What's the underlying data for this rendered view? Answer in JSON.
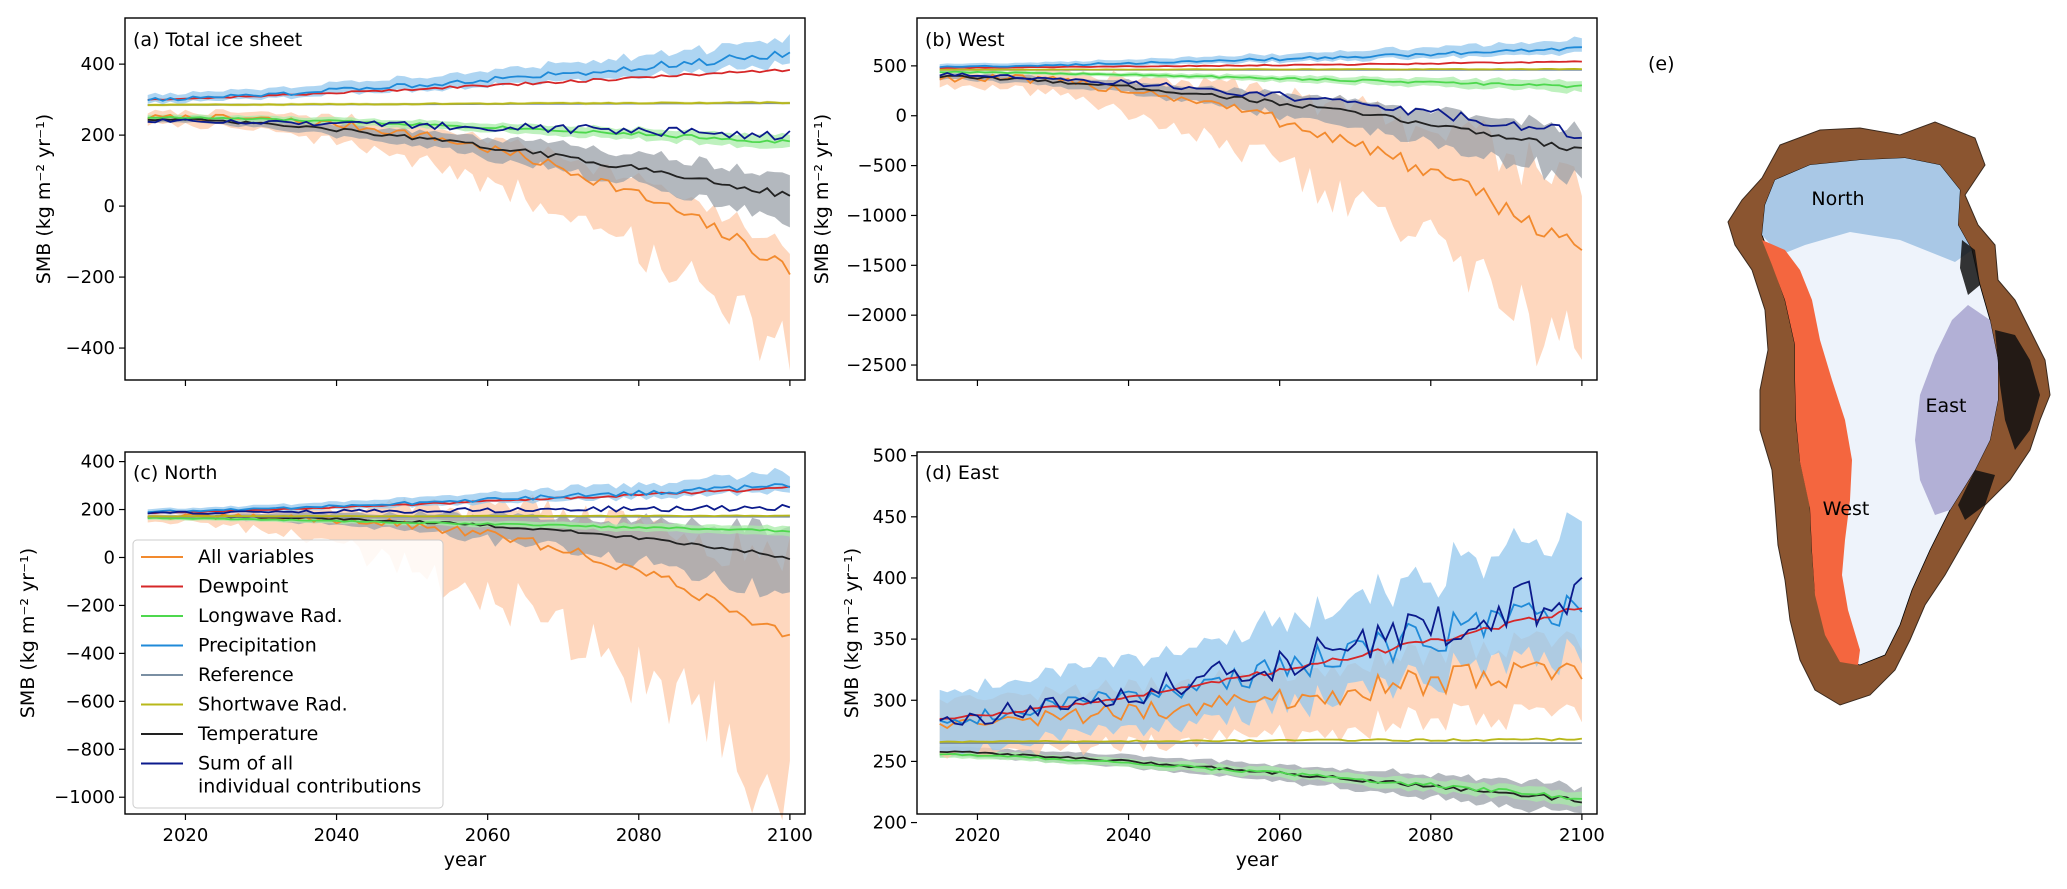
{
  "figure": {
    "map_panel_label": "(e)",
    "region_labels": [
      "North",
      "West",
      "East"
    ],
    "region_colors": {
      "North": "#a9c8e6",
      "West": "#f4663f",
      "East": "#b2b0d6",
      "interior": "#eef3fb",
      "coast": "#8b5530"
    }
  },
  "legend": {
    "entries": [
      {
        "label": "All variables",
        "color": "#f28a2e"
      },
      {
        "label": "Dewpoint",
        "color": "#d62728"
      },
      {
        "label": "Longwave Rad.",
        "color": "#4ed84e"
      },
      {
        "label": "Precipitation",
        "color": "#1f8ad8"
      },
      {
        "label": "Reference",
        "color": "#7a8fa3"
      },
      {
        "label": "Shortwave Rad.",
        "color": "#b8b81a"
      },
      {
        "label": "Temperature",
        "color": "#222222"
      },
      {
        "label": "Sum of all",
        "label2": "individual contributions",
        "color": "#0b1a8c"
      }
    ]
  },
  "chart_data": [
    {
      "type": "line",
      "panel_label": "(a) Total ice sheet",
      "xlabel": "",
      "ylabel": "SMB (kg m⁻² yr⁻¹)",
      "xlim": [
        2012,
        2102
      ],
      "ylim": [
        -490,
        530
      ],
      "yticks": [
        400,
        200,
        0,
        -200,
        -400
      ],
      "ytick_labels": [
        "400",
        "200",
        "0",
        "−200",
        "−400"
      ],
      "xticks": [
        2020,
        2040,
        2060,
        2080,
        2100
      ],
      "xtick_labels": [],
      "series": [
        {
          "name": "All variables",
          "color": "#f28a2e",
          "band": "#fdc9a8",
          "start": 250,
          "end": -180,
          "curve": 2.5,
          "noise": 22,
          "band_low": [
            20,
            230
          ],
          "band_high": [
            15,
            55
          ]
        },
        {
          "name": "Temperature",
          "color": "#222222",
          "band": "#9aa0a8",
          "start": 245,
          "end": 30,
          "curve": 1.6,
          "noise": 10,
          "band_low": [
            8,
            70
          ],
          "band_high": [
            8,
            60
          ]
        },
        {
          "name": "Longwave Rad.",
          "color": "#4ed84e",
          "band": "#a8eca8",
          "start": 250,
          "end": 180,
          "curve": 1.5,
          "noise": 6,
          "band_low": [
            8,
            20
          ],
          "band_high": [
            8,
            20
          ]
        },
        {
          "name": "Reference",
          "color": "#7a8fa3",
          "band": null,
          "start": 285,
          "end": 290,
          "curve": 1,
          "noise": 0
        },
        {
          "name": "Shortwave Rad.",
          "color": "#b8b81a",
          "band": "#e4e49a",
          "start": 285,
          "end": 292,
          "curve": 1,
          "noise": 2,
          "band_low": [
            4,
            4
          ],
          "band_high": [
            4,
            4
          ]
        },
        {
          "name": "Dewpoint",
          "color": "#d62728",
          "band": null,
          "start": 300,
          "end": 385,
          "curve": 1.2,
          "noise": 5
        },
        {
          "name": "Precipitation",
          "color": "#1f8ad8",
          "band": "#93c7ee",
          "start": 300,
          "end": 430,
          "curve": 1.3,
          "noise": 12,
          "band_low": [
            10,
            30
          ],
          "band_high": [
            15,
            45
          ]
        },
        {
          "name": "Sum of all individual contributions",
          "color": "#0b1a8c",
          "band": null,
          "start": 240,
          "end": 200,
          "curve": 1.4,
          "noise": 16
        }
      ]
    },
    {
      "type": "line",
      "panel_label": "(b) West",
      "xlabel": "",
      "ylabel": "SMB (kg m⁻² yr⁻¹)",
      "xlim": [
        2012,
        2102
      ],
      "ylim": [
        -2650,
        980
      ],
      "yticks": [
        500,
        0,
        -500,
        -1000,
        -1500,
        -2000,
        -2500
      ],
      "ytick_labels": [
        "500",
        "0",
        "−500",
        "−1000",
        "−1500",
        "−2000",
        "−2500"
      ],
      "xticks": [
        2020,
        2040,
        2060,
        2080,
        2100
      ],
      "xtick_labels": [],
      "series": [
        {
          "name": "All variables",
          "color": "#f28a2e",
          "band": "#fdc9a8",
          "start": 380,
          "end": -1350,
          "curve": 2.2,
          "noise": 110,
          "band_low": [
            80,
            1100
          ],
          "band_high": [
            50,
            650
          ]
        },
        {
          "name": "Temperature",
          "color": "#222222",
          "band": "#9aa0a8",
          "start": 390,
          "end": -340,
          "curve": 1.6,
          "noise": 35,
          "band_low": [
            30,
            280
          ],
          "band_high": [
            30,
            200
          ]
        },
        {
          "name": "Longwave Rad.",
          "color": "#4ed84e",
          "band": "#a8eca8",
          "start": 440,
          "end": 290,
          "curve": 1.3,
          "noise": 15,
          "band_low": [
            15,
            60
          ],
          "band_high": [
            15,
            60
          ]
        },
        {
          "name": "Reference",
          "color": "#7a8fa3",
          "band": null,
          "start": 460,
          "end": 460,
          "curve": 1,
          "noise": 0
        },
        {
          "name": "Shortwave Rad.",
          "color": "#b8b81a",
          "band": null,
          "start": 462,
          "end": 468,
          "curve": 1,
          "noise": 3
        },
        {
          "name": "Dewpoint",
          "color": "#d62728",
          "band": null,
          "start": 480,
          "end": 540,
          "curve": 1.2,
          "noise": 8
        },
        {
          "name": "Precipitation",
          "color": "#1f8ad8",
          "band": "#93c7ee",
          "start": 490,
          "end": 670,
          "curve": 1.3,
          "noise": 20,
          "band_low": [
            20,
            50
          ],
          "band_high": [
            30,
            90
          ]
        },
        {
          "name": "Sum of all individual contributions",
          "color": "#0b1a8c",
          "band": null,
          "start": 410,
          "end": -180,
          "curve": 1.6,
          "noise": 60
        }
      ]
    },
    {
      "type": "line",
      "panel_label": "(c) North",
      "xlabel": "",
      "ylabel": "SMB (kg m⁻² yr⁻¹)",
      "xlim": [
        2012,
        2102
      ],
      "ylim": [
        -1070,
        440
      ],
      "yticks": [
        400,
        200,
        0,
        -200,
        -400,
        -600,
        -800,
        -1000
      ],
      "ytick_labels": [
        "400",
        "200",
        "0",
        "−200",
        "−400",
        "−600",
        "−800",
        "−1000"
      ],
      "xticks": [
        2020,
        2040,
        2060,
        2080,
        2100
      ],
      "xtick_labels": [
        "2020",
        "2040",
        "2060",
        "2080",
        "2100"
      ],
      "series": [
        {
          "name": "All variables",
          "color": "#f28a2e",
          "band": "#fdc9a8",
          "start": 170,
          "end": -340,
          "curve": 3.0,
          "noise": 30,
          "band_low": [
            20,
            650
          ],
          "band_high": [
            10,
            300
          ]
        },
        {
          "name": "Temperature",
          "color": "#222222",
          "band": "#9aa0a8",
          "start": 170,
          "end": 0,
          "curve": 2.4,
          "noise": 8,
          "band_low": [
            8,
            150
          ],
          "band_high": [
            8,
            110
          ]
        },
        {
          "name": "Longwave Rad.",
          "color": "#4ed84e",
          "band": "#a8eca8",
          "start": 165,
          "end": 110,
          "curve": 1.2,
          "noise": 5,
          "band_low": [
            8,
            20
          ],
          "band_high": [
            8,
            20
          ]
        },
        {
          "name": "Reference",
          "color": "#7a8fa3",
          "band": null,
          "start": 170,
          "end": 170,
          "curve": 1,
          "noise": 0
        },
        {
          "name": "Shortwave Rad.",
          "color": "#b8b81a",
          "band": null,
          "start": 172,
          "end": 174,
          "curve": 1,
          "noise": 2
        },
        {
          "name": "Dewpoint",
          "color": "#d62728",
          "band": null,
          "start": 185,
          "end": 290,
          "curve": 1.2,
          "noise": 6
        },
        {
          "name": "Precipitation",
          "color": "#1f8ad8",
          "band": "#93c7ee",
          "start": 190,
          "end": 300,
          "curve": 1.2,
          "noise": 12,
          "band_low": [
            10,
            30
          ],
          "band_high": [
            12,
            55
          ]
        },
        {
          "name": "Sum of all individual contributions",
          "color": "#0b1a8c",
          "band": null,
          "start": 185,
          "end": 210,
          "curve": 1.1,
          "noise": 14
        }
      ]
    },
    {
      "type": "line",
      "panel_label": "(d) East",
      "xlabel": "year",
      "ylabel": "SMB (kg m⁻² yr⁻¹)",
      "xlim": [
        2012,
        2102
      ],
      "ylim": [
        207,
        503
      ],
      "yticks": [
        500,
        450,
        400,
        350,
        300,
        250,
        200
      ],
      "ytick_labels": [
        "500",
        "450",
        "400",
        "350",
        "300",
        "250",
        "200"
      ],
      "xticks": [
        2020,
        2040,
        2060,
        2080,
        2100
      ],
      "xtick_labels": [
        "2020",
        "2040",
        "2060",
        "2080",
        "2100"
      ],
      "series": [
        {
          "name": "Temperature",
          "color": "#222222",
          "band": "#9aa0a8",
          "start": 258,
          "end": 218,
          "curve": 1.3,
          "noise": 2,
          "band_low": [
            4,
            12
          ],
          "band_high": [
            4,
            12
          ]
        },
        {
          "name": "Longwave Rad.",
          "color": "#4ed84e",
          "band": "#a8eca8",
          "start": 256,
          "end": 220,
          "curve": 1.3,
          "noise": 2,
          "band_low": [
            3,
            6
          ],
          "band_high": [
            3,
            6
          ]
        },
        {
          "name": "Reference",
          "color": "#7a8fa3",
          "band": null,
          "start": 265,
          "end": 265,
          "curve": 1,
          "noise": 0
        },
        {
          "name": "Shortwave Rad.",
          "color": "#b8b81a",
          "band": null,
          "start": 266,
          "end": 268,
          "curve": 1,
          "noise": 1
        },
        {
          "name": "All variables",
          "color": "#f28a2e",
          "band": "#fdc9a8",
          "start": 282,
          "end": 330,
          "curve": 1.4,
          "noise": 14,
          "band_low": [
            25,
            35
          ],
          "band_high": [
            20,
            25
          ]
        },
        {
          "name": "Precipitation",
          "color": "#1f8ad8",
          "band": "#93c7ee",
          "start": 285,
          "end": 380,
          "curve": 1.3,
          "noise": 18,
          "band_low": [
            25,
            40
          ],
          "band_high": [
            25,
            60
          ]
        },
        {
          "name": "Dewpoint",
          "color": "#d62728",
          "band": null,
          "start": 285,
          "end": 375,
          "curve": 1.3,
          "noise": 3
        },
        {
          "name": "Sum of all individual contributions",
          "color": "#0b1a8c",
          "band": null,
          "start": 285,
          "end": 390,
          "curve": 1.3,
          "noise": 20
        }
      ]
    }
  ]
}
